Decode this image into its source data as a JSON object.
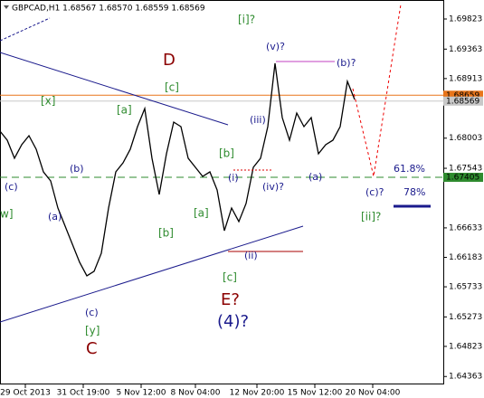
{
  "chart_data": {
    "type": "line",
    "title": "GBPCAD,H1 1.68567 1.68570 1.68559 1.68569",
    "x": [
      0,
      2,
      4,
      6,
      8,
      10,
      12,
      14,
      16,
      18,
      20,
      22,
      24,
      26,
      28,
      30,
      32,
      34,
      36,
      38,
      40,
      42,
      44,
      46,
      48,
      50,
      52,
      54,
      56,
      58,
      60,
      62,
      64,
      66,
      68,
      70,
      72,
      74,
      76,
      78,
      80,
      82,
      84,
      86,
      88,
      90,
      92,
      94,
      96,
      98
    ],
    "series": [
      {
        "color": "#000000",
        "values": [
          1.6811,
          1.67972,
          1.67696,
          1.67903,
          1.68041,
          1.67834,
          1.67488,
          1.6735,
          1.66936,
          1.66659,
          1.66383,
          1.66107,
          1.659,
          1.65969,
          1.66245,
          1.66936,
          1.67488,
          1.67626,
          1.67834,
          1.68179,
          1.68455,
          1.67696,
          1.67143,
          1.67765,
          1.68248,
          1.68179,
          1.67696,
          1.67557,
          1.67419,
          1.67488,
          1.67212,
          1.6659,
          1.66936,
          1.66729,
          1.67005,
          1.67557,
          1.67696,
          1.68179,
          1.69146,
          1.68317,
          1.67972,
          1.68386,
          1.68179,
          1.68317,
          1.67765,
          1.67903,
          1.67972,
          1.68179,
          1.6887,
          1.68593
        ]
      }
    ],
    "xlim": [
      0,
      122.5
    ],
    "xticks": [
      {
        "value": 7,
        "label": "29 Oct 2013"
      },
      {
        "value": 23,
        "label": "31 Oct 19:00"
      },
      {
        "value": 39,
        "label": "5 Nov 12:00"
      },
      {
        "value": 54,
        "label": "8 Nov 04:00"
      },
      {
        "value": 71,
        "label": "12 Nov 20:00"
      },
      {
        "value": 87,
        "label": "15 Nov 12:00"
      },
      {
        "value": 103,
        "label": "20 Nov 04:00"
      }
    ],
    "ylim": [
      1.64242,
      1.70113
    ],
    "yticks": [
      1.69823,
      1.69363,
      1.68913,
      1.68003,
      1.67543,
      1.66633,
      1.66183,
      1.65733,
      1.65273,
      1.64823,
      1.64363
    ],
    "levels": [
      {
        "value": 1.68659,
        "color": "#e8751a",
        "text_color": "#ffffff",
        "dash": false
      },
      {
        "value": 1.68569,
        "color": "#c8c8c8",
        "text_color": "#000000",
        "dash": false
      },
      {
        "value": 1.67405,
        "color": "#2e8b2e",
        "text_color": "#ffffff",
        "dash": true
      }
    ],
    "annotations": [
      "[i]?",
      "(v)?",
      "D",
      "(b)?",
      "[c]",
      "[x]",
      "[a]",
      "(iii)",
      "[b]",
      "(b)",
      "61.8%",
      "(c)",
      "(i)",
      "(iv)?",
      "(a)",
      "(c)?",
      "78%",
      "w]",
      "(a)",
      "[a]",
      "[ii]?",
      "[b]",
      "(ii)",
      "[c]",
      "E?",
      "(4)?",
      "(c)",
      "[y]",
      "C"
    ]
  }
}
